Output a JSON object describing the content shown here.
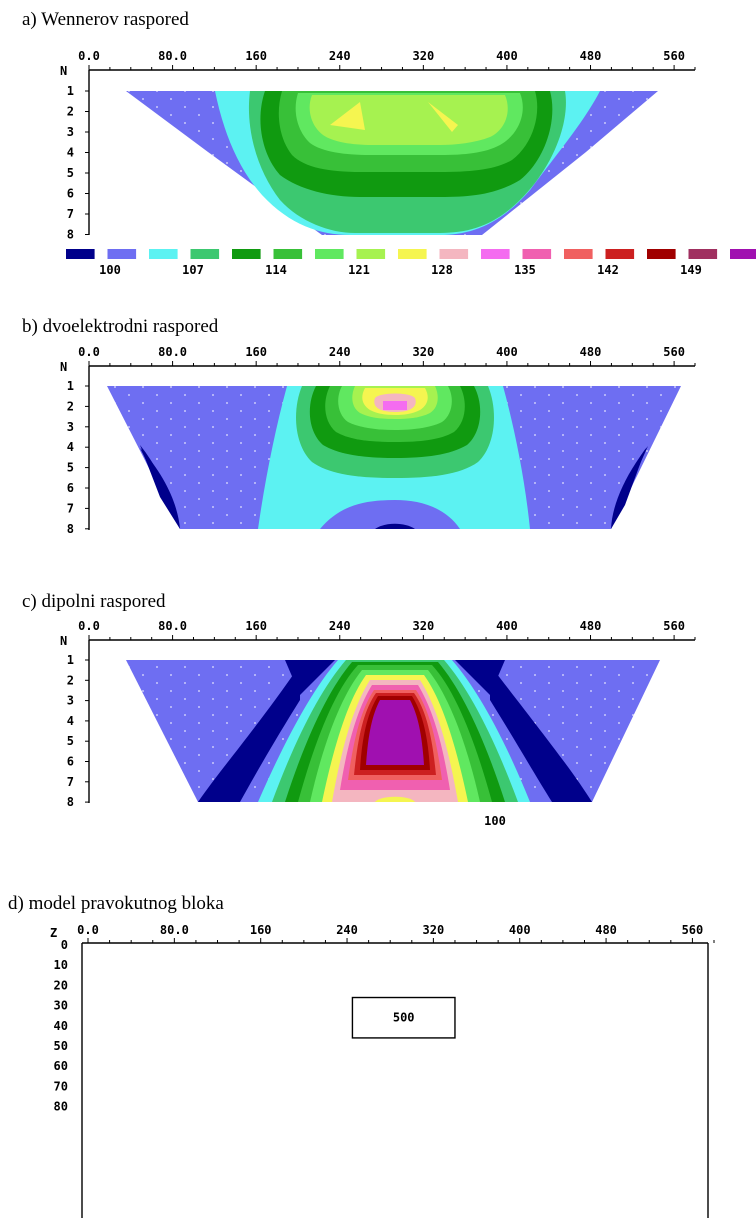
{
  "chart_data": [
    {
      "type": "heatmap",
      "title": "a) Wennerov raspored",
      "x_ticks": [
        "0.0",
        "80.0",
        "160",
        "240",
        "320",
        "400",
        "480",
        "560"
      ],
      "y_axis_label": "N",
      "y_ticks": [
        "1",
        "2",
        "3",
        "4",
        "5",
        "6",
        "7",
        "8"
      ],
      "x_range": [
        0,
        580
      ],
      "y_range": [
        0,
        8
      ],
      "scale_values": [
        "100",
        "107",
        "114",
        "121",
        "128",
        "135",
        "142",
        "149"
      ],
      "scale_colors": [
        "#00008b",
        "#6e6ef2",
        "#5cf2f2",
        "#3cc870",
        "#109a10",
        "#38c038",
        "#60e860",
        "#a6f250",
        "#f5f550",
        "#f4b6c0",
        "#f46cf0",
        "#f060b0",
        "#f06060",
        "#cc2020",
        "#a00000",
        "#a03060",
        "#a010b0"
      ]
    },
    {
      "type": "heatmap",
      "title": "b) dvoelektrodni raspored",
      "x_ticks": [
        "0.0",
        "80.0",
        "160",
        "240",
        "320",
        "400",
        "480",
        "560"
      ],
      "y_axis_label": "N",
      "y_ticks": [
        "1",
        "2",
        "3",
        "4",
        "5",
        "6",
        "7",
        "8"
      ],
      "x_range": [
        0,
        580
      ],
      "y_range": [
        0,
        8
      ]
    },
    {
      "type": "heatmap",
      "title": "c) dipolni raspored",
      "x_ticks": [
        "0.0",
        "80.0",
        "160",
        "240",
        "320",
        "400",
        "480",
        "560"
      ],
      "y_axis_label": "N",
      "y_ticks": [
        "1",
        "2",
        "3",
        "4",
        "5",
        "6",
        "7",
        "8"
      ],
      "x_range": [
        0,
        580
      ],
      "y_range": [
        0,
        8
      ]
    },
    {
      "type": "other",
      "title": "d) model pravokutnog bloka",
      "x_ticks": [
        "0.0",
        "80.0",
        "160",
        "240",
        "320",
        "400",
        "480",
        "560"
      ],
      "y_axis_label": "Z",
      "y_ticks": [
        "0",
        "10",
        "20",
        "30",
        "40",
        "50",
        "60",
        "70",
        "80"
      ],
      "x_range": [
        0,
        580
      ],
      "z_range": [
        0,
        80
      ],
      "block": {
        "x_range": [
          245,
          340
        ],
        "z_range": [
          26,
          46
        ],
        "label": "500"
      },
      "background_label": "100"
    }
  ]
}
